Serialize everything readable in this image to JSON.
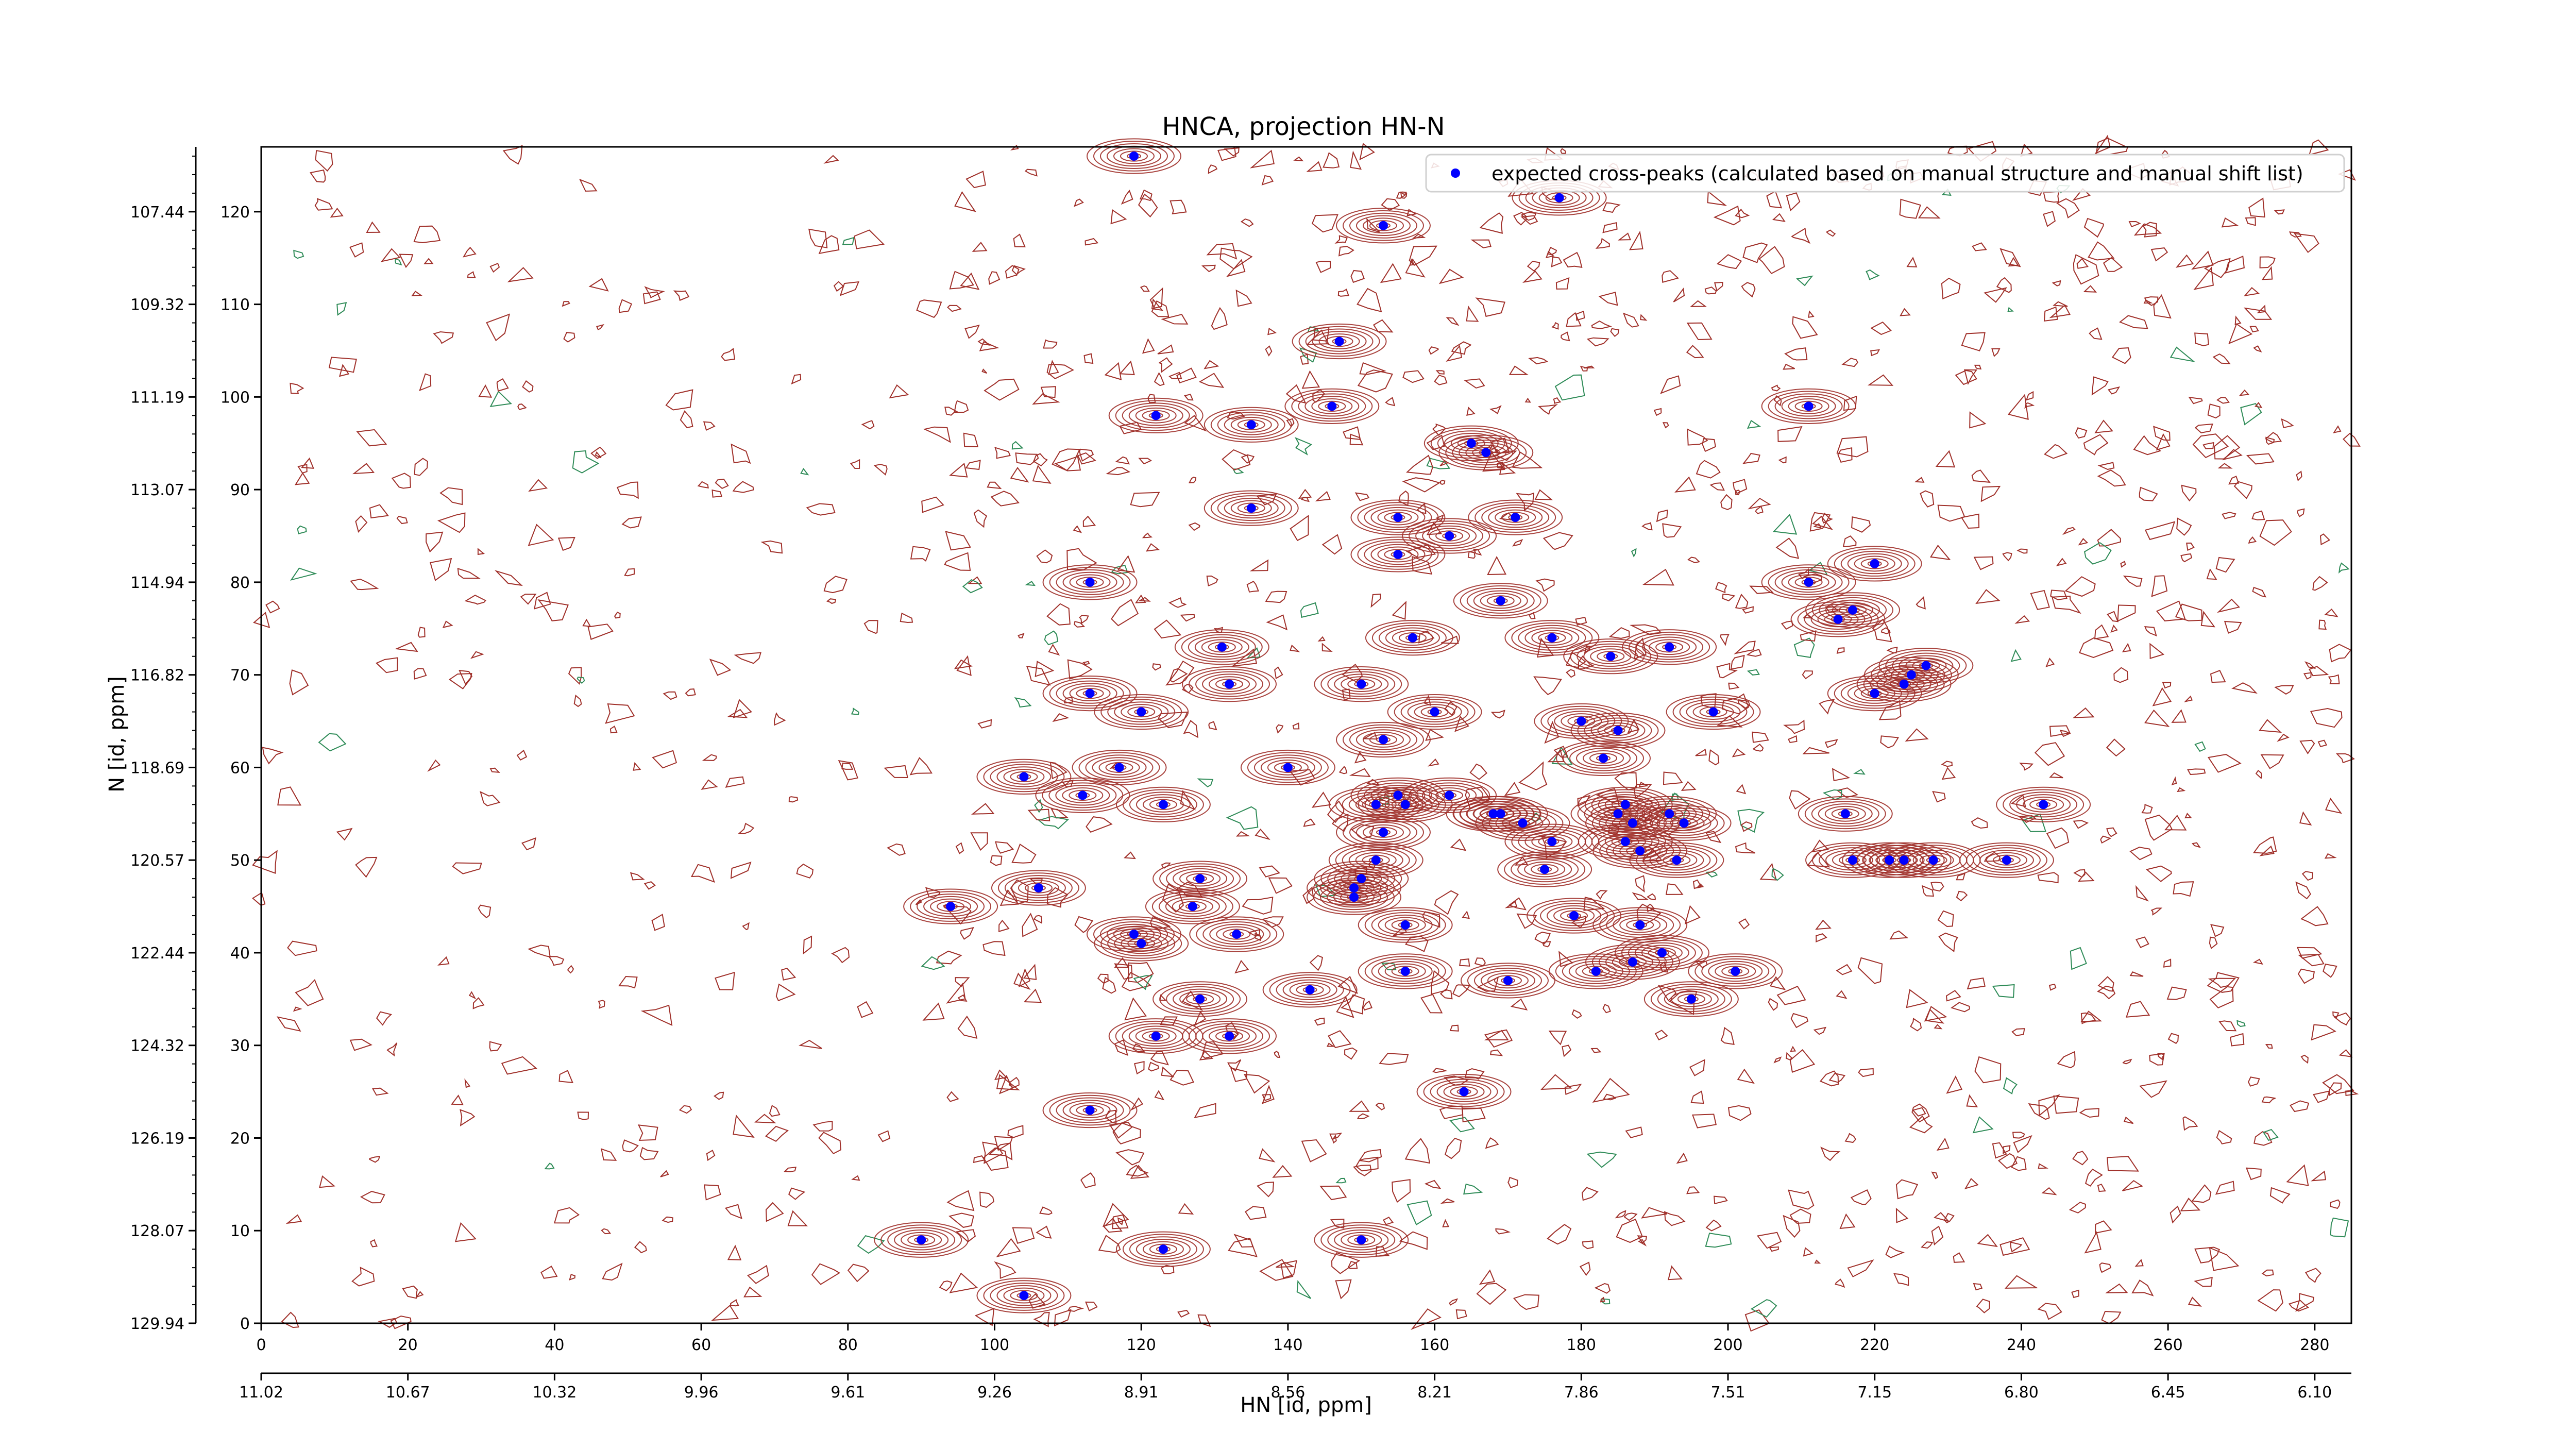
{
  "chart_data": {
    "type": "scatter",
    "title": "HNCA, projection HN-N",
    "xlabel": "HN [id, ppm]",
    "ylabel": "N [id, ppm]",
    "x_index_range": [
      0,
      285
    ],
    "y_index_range": [
      0,
      127
    ],
    "x_index_ticks": [
      "0",
      "20",
      "40",
      "60",
      "80",
      "100",
      "120",
      "140",
      "160",
      "180",
      "200",
      "220",
      "240",
      "260",
      "280"
    ],
    "y_index_ticks": [
      "0",
      "10",
      "20",
      "30",
      "40",
      "50",
      "60",
      "70",
      "80",
      "90",
      "100",
      "110",
      "120"
    ],
    "x_ppm_ticks": [
      "11.02",
      "10.67",
      "10.32",
      "9.96",
      "9.61",
      "9.26",
      "8.91",
      "8.56",
      "8.21",
      "7.86",
      "7.51",
      "7.15",
      "6.80",
      "6.45",
      "6.10"
    ],
    "y_ppm_ticks": [
      "129.94",
      "128.07",
      "126.19",
      "124.32",
      "122.44",
      "120.57",
      "118.69",
      "116.82",
      "114.94",
      "113.07",
      "111.19",
      "109.32",
      "107.44"
    ],
    "legend": {
      "label": "expected cross-peaks (calculated based on manual structure and manual shift list)",
      "position": "top-right"
    },
    "colors": {
      "contour_positive": "#a0302a",
      "contour_negative": "#2e8b57",
      "peak_marker": "#0000ff"
    },
    "grid": false,
    "series": [
      {
        "name": "expected cross-peaks (calculated based on manual structure and manual shift list)",
        "points": [
          [
            119,
            126
          ],
          [
            177,
            121.5
          ],
          [
            153,
            118.5
          ],
          [
            147,
            106
          ],
          [
            146,
            99
          ],
          [
            122,
            98
          ],
          [
            135,
            97
          ],
          [
            165,
            95
          ],
          [
            167,
            94
          ],
          [
            135,
            88
          ],
          [
            155,
            87
          ],
          [
            162,
            85
          ],
          [
            171,
            87
          ],
          [
            155,
            83
          ],
          [
            113,
            80
          ],
          [
            169,
            78
          ],
          [
            157,
            74
          ],
          [
            176,
            74
          ],
          [
            184,
            72
          ],
          [
            192,
            73
          ],
          [
            131,
            73
          ],
          [
            113,
            68
          ],
          [
            120,
            66
          ],
          [
            132,
            69
          ],
          [
            150,
            69
          ],
          [
            153,
            63
          ],
          [
            160,
            66
          ],
          [
            180,
            65
          ],
          [
            183,
            61
          ],
          [
            185,
            64
          ],
          [
            198,
            66
          ],
          [
            104,
            59
          ],
          [
            117,
            60
          ],
          [
            140,
            60
          ],
          [
            112,
            57
          ],
          [
            123,
            56
          ],
          [
            152,
            56
          ],
          [
            155,
            57
          ],
          [
            156,
            56
          ],
          [
            162,
            57
          ],
          [
            168,
            55
          ],
          [
            169,
            55
          ],
          [
            172,
            54
          ],
          [
            153,
            53
          ],
          [
            152,
            50
          ],
          [
            150,
            48
          ],
          [
            149,
            47
          ],
          [
            149,
            46
          ],
          [
            176,
            52
          ],
          [
            185,
            55
          ],
          [
            186,
            56
          ],
          [
            187,
            54
          ],
          [
            186,
            52
          ],
          [
            192,
            55
          ],
          [
            194,
            54
          ],
          [
            193,
            50
          ],
          [
            188,
            51
          ],
          [
            175,
            49
          ],
          [
            128,
            48
          ],
          [
            127,
            45
          ],
          [
            106,
            47
          ],
          [
            94,
            45
          ],
          [
            119,
            42
          ],
          [
            120,
            41
          ],
          [
            133,
            42
          ],
          [
            156,
            43
          ],
          [
            179,
            44
          ],
          [
            188,
            43
          ],
          [
            191,
            40
          ],
          [
            187,
            39
          ],
          [
            182,
            38
          ],
          [
            156,
            38
          ],
          [
            170,
            37
          ],
          [
            201,
            38
          ],
          [
            195,
            35
          ],
          [
            128,
            35
          ],
          [
            132,
            31
          ],
          [
            122,
            31
          ],
          [
            143,
            36
          ],
          [
            164,
            25
          ],
          [
            113,
            23
          ],
          [
            90,
            9
          ],
          [
            123,
            8
          ],
          [
            150,
            9
          ],
          [
            104,
            3
          ],
          [
            211,
            99
          ],
          [
            211,
            80
          ],
          [
            220,
            82
          ],
          [
            215,
            76
          ],
          [
            217,
            77
          ],
          [
            220,
            68
          ],
          [
            224,
            69
          ],
          [
            225,
            70
          ],
          [
            227,
            71
          ],
          [
            216,
            55
          ],
          [
            243,
            56
          ],
          [
            217,
            50
          ],
          [
            222,
            50
          ],
          [
            224,
            50
          ],
          [
            228,
            50
          ],
          [
            238,
            50
          ]
        ]
      }
    ]
  }
}
